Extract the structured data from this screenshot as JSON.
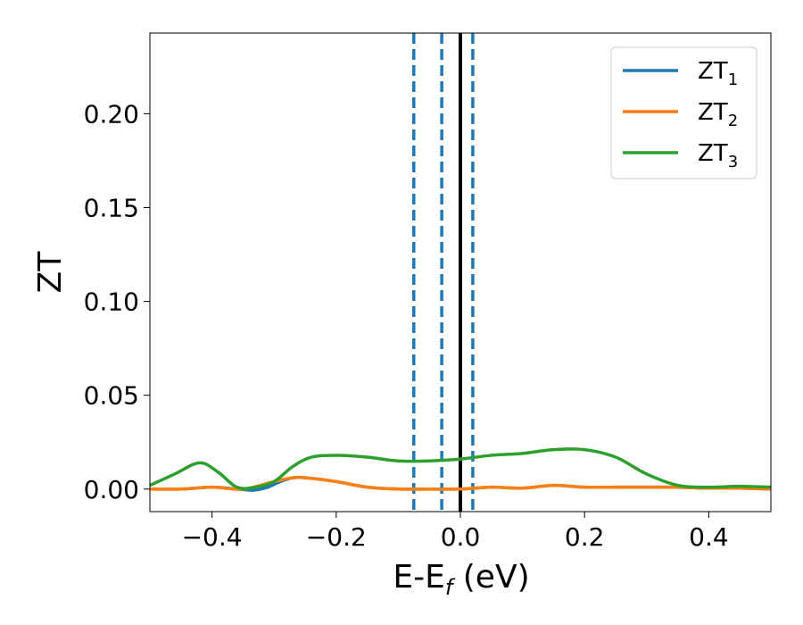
{
  "chart_data": {
    "type": "line",
    "xlabel": "E-E",
    "xlabel_sub": "f",
    "xlabel_unit": " (eV)",
    "ylabel": "ZT",
    "xlim": [
      -0.5,
      0.5
    ],
    "ylim": [
      -0.012,
      0.243
    ],
    "xticks": [
      -0.4,
      -0.2,
      0.0,
      0.2,
      0.4
    ],
    "xtick_labels": [
      "−0.4",
      "−0.2",
      "0.0",
      "0.2",
      "0.4"
    ],
    "yticks": [
      0.0,
      0.05,
      0.1,
      0.15,
      0.2
    ],
    "ytick_labels": [
      "0.00",
      "0.05",
      "0.10",
      "0.15",
      "0.20"
    ],
    "grid": false,
    "legend_position": "top-right",
    "vertical_lines": [
      {
        "x": -0.075,
        "style": "dashed",
        "color": "#1f77b4"
      },
      {
        "x": -0.03,
        "style": "dashed",
        "color": "#1f77b4"
      },
      {
        "x": 0.02,
        "style": "dashed",
        "color": "#1f77b4"
      },
      {
        "x": 0.0,
        "style": "solid",
        "color": "#000000"
      }
    ],
    "series": [
      {
        "name": "ZT",
        "name_sub": "1",
        "color": "#1f77b4",
        "x": [
          -0.5,
          -0.45,
          -0.4,
          -0.36,
          -0.34,
          -0.33,
          -0.31,
          -0.29,
          -0.27,
          -0.25,
          -0.2,
          -0.15,
          -0.1,
          -0.05,
          0.0,
          0.05,
          0.1,
          0.15,
          0.2,
          0.25,
          0.3,
          0.35,
          0.4,
          0.45,
          0.5
        ],
        "y": [
          0.0,
          0.0,
          0.001,
          0.0,
          -0.0005,
          -0.0005,
          0.001,
          0.004,
          0.006,
          0.006,
          0.004,
          0.001,
          0.0,
          0.0,
          0.0,
          0.001,
          0.0005,
          0.002,
          0.001,
          0.001,
          0.001,
          0.001,
          0.0005,
          0.0005,
          0.0
        ]
      },
      {
        "name": "ZT",
        "name_sub": "2",
        "color": "#ff7f0e",
        "x": [
          -0.5,
          -0.45,
          -0.4,
          -0.35,
          -0.3,
          -0.27,
          -0.25,
          -0.2,
          -0.15,
          -0.1,
          -0.05,
          0.0,
          0.05,
          0.1,
          0.15,
          0.2,
          0.25,
          0.3,
          0.35,
          0.4,
          0.45,
          0.5
        ],
        "y": [
          0.0,
          0.0,
          0.001,
          0.0,
          0.004,
          0.006,
          0.006,
          0.004,
          0.001,
          0.0,
          0.0,
          0.0,
          0.001,
          0.0005,
          0.002,
          0.001,
          0.001,
          0.001,
          0.001,
          0.0005,
          0.0005,
          0.0
        ]
      },
      {
        "name": "ZT",
        "name_sub": "3",
        "color": "#2ca02c",
        "x": [
          -0.5,
          -0.46,
          -0.42,
          -0.39,
          -0.36,
          -0.33,
          -0.3,
          -0.27,
          -0.24,
          -0.2,
          -0.15,
          -0.1,
          -0.05,
          0.0,
          0.05,
          0.1,
          0.15,
          0.2,
          0.25,
          0.3,
          0.35,
          0.4,
          0.45,
          0.5
        ],
        "y": [
          0.002,
          0.008,
          0.014,
          0.009,
          0.001,
          0.001,
          0.004,
          0.012,
          0.017,
          0.018,
          0.017,
          0.015,
          0.015,
          0.016,
          0.018,
          0.019,
          0.021,
          0.021,
          0.017,
          0.008,
          0.002,
          0.001,
          0.0015,
          0.001
        ]
      }
    ]
  }
}
